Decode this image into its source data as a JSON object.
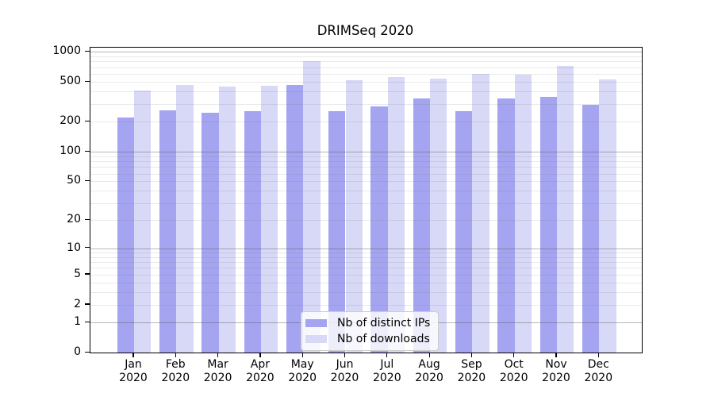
{
  "chart_data": {
    "type": "bar",
    "title": "DRIMSeq 2020",
    "year_label": "2020",
    "categories": [
      "Jan",
      "Feb",
      "Mar",
      "Apr",
      "May",
      "Jun",
      "Jul",
      "Aug",
      "Sep",
      "Oct",
      "Nov",
      "Dec"
    ],
    "series": [
      {
        "name": "Nb of distinct IPs",
        "color": "#a4a4f0",
        "values": [
          220,
          260,
          245,
          255,
          470,
          255,
          285,
          340,
          255,
          340,
          355,
          295
        ]
      },
      {
        "name": "Nb of downloads",
        "color": "#d8d8f7",
        "values": [
          410,
          465,
          450,
          455,
          800,
          520,
          565,
          545,
          600,
          595,
          720,
          535
        ]
      }
    ],
    "yscale": "log1p",
    "ylim": [
      0,
      1100
    ],
    "yticks": [
      1000,
      500,
      200,
      100,
      50,
      20,
      10,
      5,
      2,
      1,
      0
    ],
    "grid_minor_values": [
      2,
      3,
      4,
      5,
      6,
      7,
      8,
      9,
      20,
      30,
      40,
      50,
      60,
      70,
      80,
      90,
      200,
      300,
      400,
      500,
      600,
      700,
      800,
      900
    ],
    "grid_major_values": [
      1,
      10,
      100,
      1000
    ],
    "legend_position": "lower center"
  }
}
